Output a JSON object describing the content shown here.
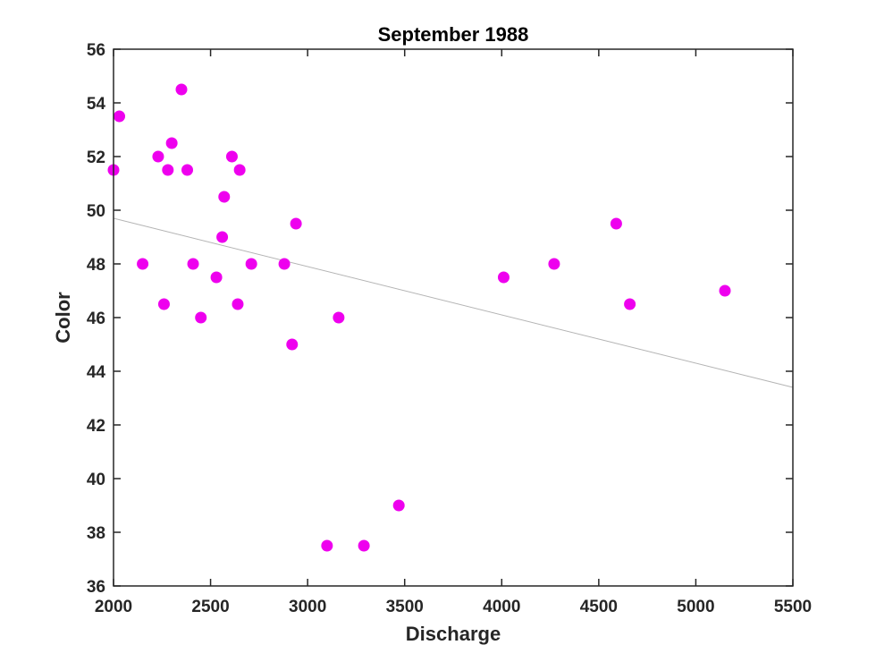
{
  "chart_data": {
    "type": "scatter",
    "title": "September 1988",
    "xlabel": "Discharge",
    "ylabel": "Color",
    "xlim": [
      2000,
      5500
    ],
    "ylim": [
      36,
      56
    ],
    "xticks": [
      2000,
      2500,
      3000,
      3500,
      4000,
      4500,
      5000,
      5500
    ],
    "yticks": [
      36,
      38,
      40,
      42,
      44,
      46,
      48,
      50,
      52,
      54,
      56
    ],
    "grid": false,
    "series": [
      {
        "points": [
          {
            "x": 2000,
            "y": 51.5
          },
          {
            "x": 2030,
            "y": 53.5
          },
          {
            "x": 2150,
            "y": 48
          },
          {
            "x": 2230,
            "y": 52
          },
          {
            "x": 2260,
            "y": 46.5
          },
          {
            "x": 2280,
            "y": 51.5
          },
          {
            "x": 2300,
            "y": 52.5
          },
          {
            "x": 2350,
            "y": 54.5
          },
          {
            "x": 2380,
            "y": 51.5
          },
          {
            "x": 2410,
            "y": 48
          },
          {
            "x": 2450,
            "y": 46
          },
          {
            "x": 2530,
            "y": 47.5
          },
          {
            "x": 2560,
            "y": 49
          },
          {
            "x": 2570,
            "y": 50.5
          },
          {
            "x": 2610,
            "y": 52
          },
          {
            "x": 2640,
            "y": 46.5
          },
          {
            "x": 2650,
            "y": 51.5
          },
          {
            "x": 2710,
            "y": 48
          },
          {
            "x": 2880,
            "y": 48
          },
          {
            "x": 2920,
            "y": 45
          },
          {
            "x": 2940,
            "y": 49.5
          },
          {
            "x": 3100,
            "y": 37.5
          },
          {
            "x": 3160,
            "y": 46
          },
          {
            "x": 3290,
            "y": 37.5
          },
          {
            "x": 3470,
            "y": 39
          },
          {
            "x": 4010,
            "y": 47.5
          },
          {
            "x": 4270,
            "y": 48
          },
          {
            "x": 4590,
            "y": 49.5
          },
          {
            "x": 4660,
            "y": 46.5
          },
          {
            "x": 5150,
            "y": 47
          }
        ]
      }
    ],
    "trend_line": {
      "x": [
        2000,
        5500
      ],
      "y": [
        49.7,
        43.4
      ]
    },
    "colors": {
      "marker": "#ee00ee",
      "trend_line": "#b4b4b4",
      "axis": "#262626"
    }
  }
}
